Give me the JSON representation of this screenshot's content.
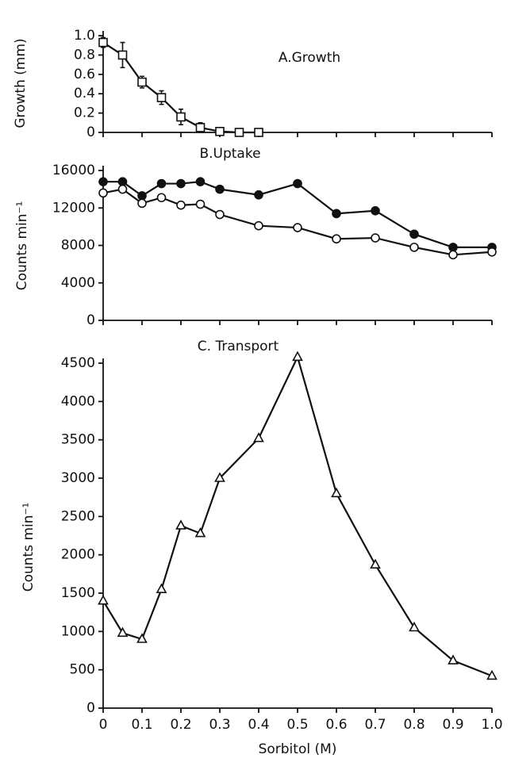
{
  "chart_data": [
    {
      "type": "line",
      "title": "A.Growth",
      "y_label": "Growth (mm)",
      "x": [
        0,
        0.05,
        0.1,
        0.15,
        0.2,
        0.25,
        0.3,
        0.35,
        0.4
      ],
      "series": [
        {
          "color": "#111111",
          "marker": "square-open",
          "values": [
            0.93,
            0.8,
            0.52,
            0.36,
            0.16,
            0.05,
            0.01,
            0,
            0
          ],
          "errors": [
            0.05,
            0.13,
            0.06,
            0.07,
            0.08,
            0.05,
            0.03,
            0.02,
            0.02
          ]
        }
      ],
      "xlim": [
        0,
        1
      ],
      "xticks": [
        0,
        0.1,
        0.2,
        0.3,
        0.4,
        0.5,
        0.6,
        0.7,
        0.8,
        0.9,
        1
      ],
      "xtick_labels": false,
      "ylim": [
        0,
        1
      ],
      "yticks": [
        0,
        0.2,
        0.4,
        0.6,
        0.8,
        {
          "value": 1,
          "label": "1.0"
        }
      ]
    },
    {
      "type": "line",
      "title": "B.Uptake",
      "y_label": "Counts min⁻¹",
      "x": [
        0,
        0.05,
        0.1,
        0.15,
        0.2,
        0.25,
        0.3,
        0.4,
        0.5,
        0.6,
        0.7,
        0.8,
        0.9,
        1
      ],
      "series": [
        {
          "color": "#111111",
          "marker": "circle-filled",
          "values": [
            14800,
            14800,
            13300,
            14600,
            14600,
            14800,
            14000,
            13400,
            14600,
            11400,
            11700,
            9200,
            7800,
            7800
          ]
        },
        {
          "color": "#111111",
          "marker": "circle-open",
          "values": [
            13600,
            14000,
            12500,
            13100,
            12300,
            12400,
            11300,
            10100,
            9900,
            8700,
            8800,
            7800,
            7000,
            7300
          ]
        }
      ],
      "xlim": [
        0,
        1
      ],
      "xticks": [
        0,
        0.1,
        0.2,
        0.3,
        0.4,
        0.5,
        0.6,
        0.7,
        0.8,
        0.9,
        1
      ],
      "xtick_labels": false,
      "ylim": [
        0,
        16000
      ],
      "yticks": [
        0,
        4000,
        8000,
        12000,
        16000
      ]
    },
    {
      "type": "line",
      "title": "C. Transport",
      "y_label": "Counts   min⁻¹",
      "x_label": "Sorbitol (M)",
      "x": [
        0,
        0.05,
        0.1,
        0.15,
        0.2,
        0.25,
        0.3,
        0.4,
        0.5,
        0.6,
        0.7,
        0.8,
        0.9,
        1
      ],
      "series": [
        {
          "color": "#111111",
          "marker": "triangle-open",
          "values": [
            1400,
            980,
            900,
            1550,
            2380,
            2280,
            3000,
            3520,
            4580,
            2800,
            1870,
            1050,
            620,
            420
          ]
        }
      ],
      "xlim": [
        0,
        1
      ],
      "xticks": [
        0,
        0.1,
        0.2,
        0.3,
        0.4,
        0.5,
        0.6,
        0.7,
        0.8,
        0.9,
        {
          "value": 1,
          "label": "1.0"
        }
      ],
      "xtick_labels": true,
      "ylim": [
        0,
        4500
      ],
      "yticks": [
        0,
        500,
        1000,
        1500,
        2000,
        2500,
        3000,
        3500,
        4000,
        4500
      ]
    }
  ]
}
